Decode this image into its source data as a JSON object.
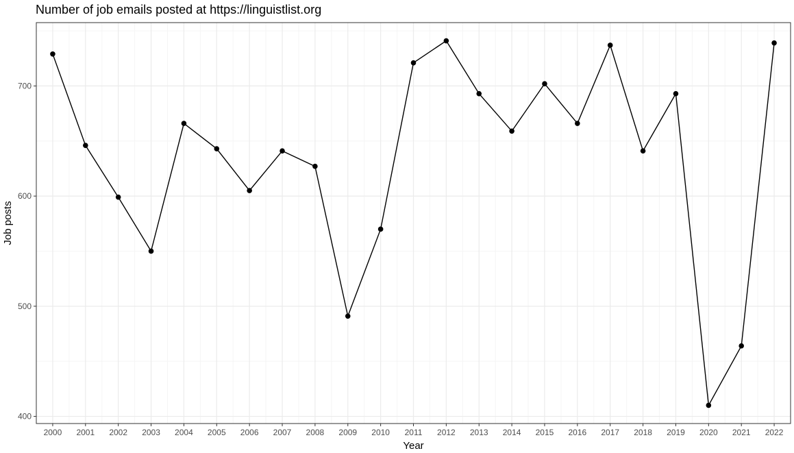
{
  "chart_data": {
    "type": "line",
    "title": "Number of job emails posted at https://linguistlist.org",
    "xlabel": "Year",
    "ylabel": "Job posts",
    "x": [
      2000,
      2001,
      2002,
      2003,
      2004,
      2005,
      2006,
      2007,
      2008,
      2009,
      2010,
      2011,
      2012,
      2013,
      2014,
      2015,
      2016,
      2017,
      2018,
      2019,
      2020,
      2021,
      2022
    ],
    "series": [
      {
        "values": [
          729,
          646,
          599,
          550,
          666,
          643,
          605,
          641,
          627,
          491,
          570,
          721,
          741,
          693,
          659,
          702,
          666,
          737,
          641,
          693,
          410,
          464,
          739
        ]
      }
    ],
    "xticks": [
      "2000",
      "2001",
      "2002",
      "2003",
      "2004",
      "2005",
      "2006",
      "2007",
      "2008",
      "2009",
      "2010",
      "2011",
      "2012",
      "2013",
      "2014",
      "2015",
      "2016",
      "2017",
      "2018",
      "2019",
      "2020",
      "2021",
      "2022"
    ],
    "yticks": [
      "400",
      "500",
      "600",
      "700"
    ],
    "xlim": [
      1999.5,
      2022.5
    ],
    "ylim": [
      393.5,
      757.5
    ],
    "grid": true,
    "legend": "none",
    "colors": {
      "line": "#000000",
      "point": "#000000",
      "grid_major": "#ebebeb",
      "grid_minor": "#f5f5f5",
      "panel_border": "#333333",
      "tick_text": "#4d4d4d"
    }
  }
}
